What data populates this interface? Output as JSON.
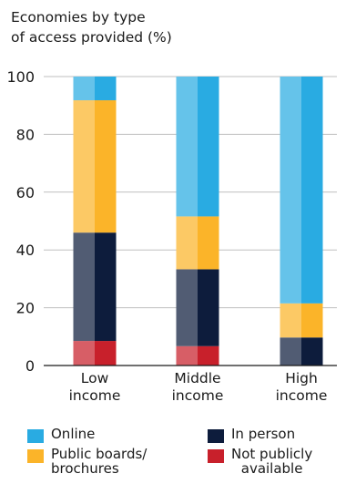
{
  "chart_data": {
    "type": "bar",
    "stacked": true,
    "title": "Economies by type of access provided (%)",
    "title_lines": [
      "Economies by type",
      "of access provided (%)"
    ],
    "categories": [
      "Low income",
      "Middle income",
      "High income"
    ],
    "category_lines": [
      [
        "Low",
        "income"
      ],
      [
        "Middle",
        "income"
      ],
      [
        "High",
        "income"
      ]
    ],
    "ylim": [
      0,
      100
    ],
    "yticks": [
      0,
      20,
      40,
      60,
      80,
      100
    ],
    "grid": true,
    "series": [
      {
        "name": "Not publicly available",
        "name_lines": [
          "Not publicly",
          "available"
        ],
        "color": "#c8202b",
        "values": [
          8.5,
          6.7,
          0
        ]
      },
      {
        "name": "In person",
        "name_lines": [
          "In person"
        ],
        "color": "#0d1c3c",
        "values": [
          37.5,
          26.6,
          9.7
        ]
      },
      {
        "name": "Public boards/ brochures",
        "name_lines": [
          "Public boards/",
          "brochures"
        ],
        "color": "#fbb429",
        "values": [
          45.8,
          18.3,
          11.8
        ]
      },
      {
        "name": "Online",
        "name_lines": [
          "Online"
        ],
        "color": "#29abe2",
        "values": [
          8.2,
          48.4,
          78.5
        ]
      }
    ],
    "legend_order": [
      "Online",
      "In person",
      "Public boards/ brochures",
      "Not publicly available"
    ],
    "legend_placement": "bottom"
  }
}
